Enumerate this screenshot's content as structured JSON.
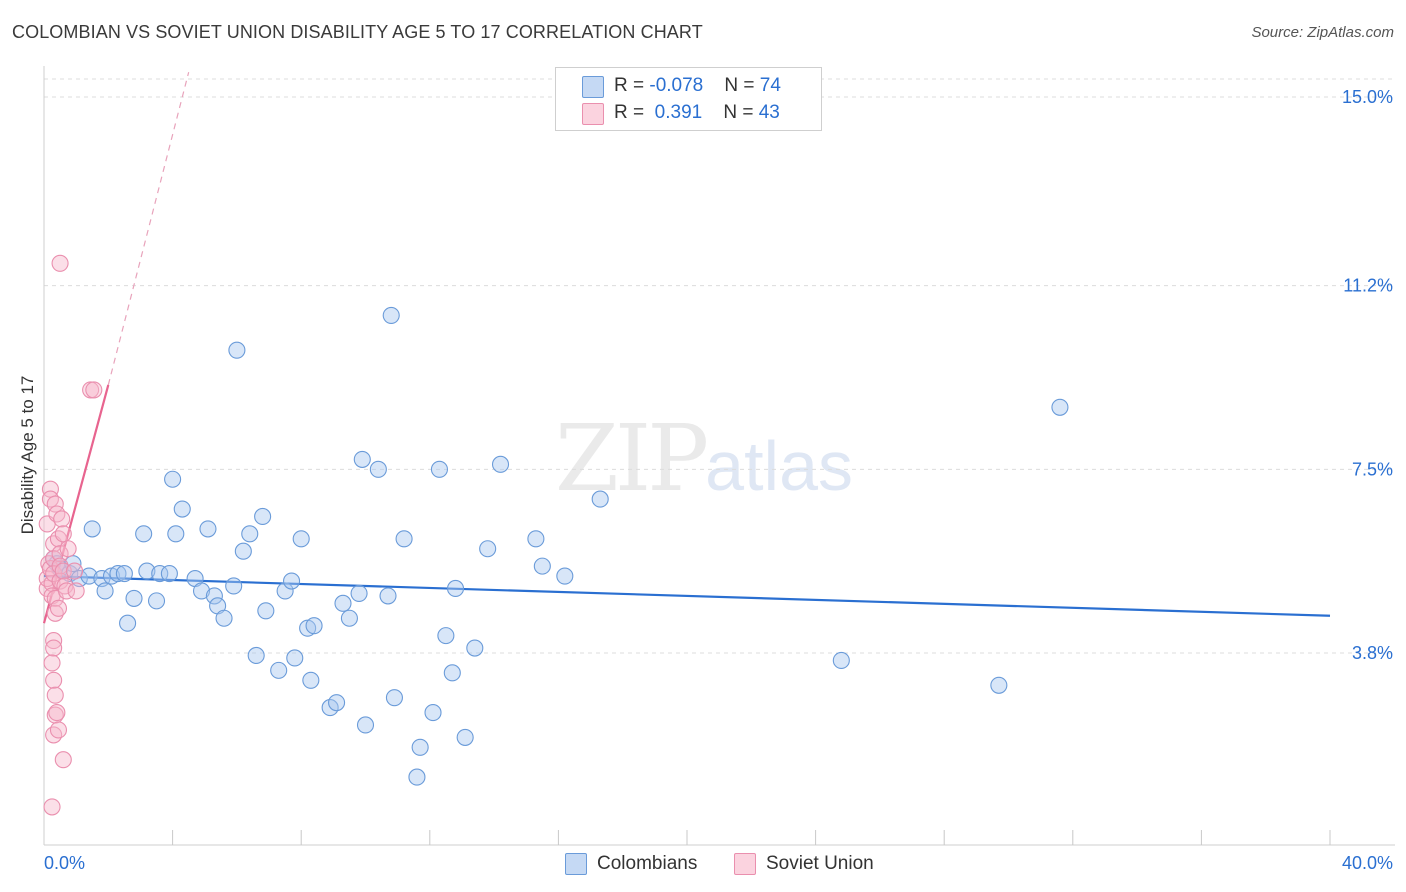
{
  "title": "COLOMBIAN VS SOVIET UNION DISABILITY AGE 5 TO 17 CORRELATION CHART",
  "source": "Source: ZipAtlas.com",
  "watermark": {
    "zip": "ZIP",
    "atlas": "atlas"
  },
  "legend": {
    "rows": [
      {
        "r_label": "R = ",
        "r_value": "-0.078",
        "n_label": "N = ",
        "n_value": "74",
        "color": "#a9c8f0"
      },
      {
        "r_label": "R = ",
        "r_value": " 0.391",
        "n_label": "N = ",
        "n_value": "43",
        "color": "#f6b8cb"
      }
    ]
  },
  "bottom_legend": {
    "colombians": "Colombians",
    "soviet": "Soviet Union"
  },
  "chart_data": {
    "type": "scatter",
    "title": "COLOMBIAN VS SOVIET UNION DISABILITY AGE 5 TO 17 CORRELATION CHART",
    "xlabel": "",
    "ylabel": "Disability Age 5 to 17",
    "xlim": [
      0,
      40
    ],
    "ylim": [
      0,
      15.5
    ],
    "x_tick_labels": [
      "0.0%",
      "40.0%"
    ],
    "y_ticks": [
      3.8,
      7.5,
      11.2,
      15.0
    ],
    "y_tick_labels": [
      "3.8%",
      "7.5%",
      "11.2%",
      "15.0%"
    ],
    "grid": true,
    "colors": {
      "colombians": "#a9c8f0",
      "colombians_edge": "#6a9bd9",
      "colombians_line": "#2a6fd1",
      "soviet": "#f6b8cb",
      "soviet_edge": "#ea8fae",
      "soviet_line": "#e8648f",
      "tick_label": "#2a6fd1"
    },
    "series": [
      {
        "name": "Colombians",
        "points": [
          [
            0.3,
            5.7
          ],
          [
            0.4,
            5.6
          ],
          [
            0.5,
            5.5
          ],
          [
            0.8,
            5.4
          ],
          [
            0.9,
            5.6
          ],
          [
            1.1,
            5.3
          ],
          [
            1.4,
            5.35
          ],
          [
            1.5,
            6.3
          ],
          [
            1.8,
            5.3
          ],
          [
            1.9,
            5.05
          ],
          [
            2.1,
            5.35
          ],
          [
            2.3,
            5.4
          ],
          [
            2.5,
            5.4
          ],
          [
            2.6,
            4.4
          ],
          [
            2.8,
            4.9
          ],
          [
            3.1,
            6.2
          ],
          [
            3.2,
            5.45
          ],
          [
            3.5,
            4.85
          ],
          [
            3.6,
            5.4
          ],
          [
            3.9,
            5.4
          ],
          [
            4.0,
            7.3
          ],
          [
            4.1,
            6.2
          ],
          [
            4.3,
            6.7
          ],
          [
            4.7,
            5.3
          ],
          [
            4.9,
            5.05
          ],
          [
            5.1,
            6.3
          ],
          [
            5.3,
            4.95
          ],
          [
            5.4,
            4.75
          ],
          [
            5.6,
            4.5
          ],
          [
            5.9,
            5.15
          ],
          [
            6.0,
            9.9
          ],
          [
            6.2,
            5.85
          ],
          [
            6.4,
            6.2
          ],
          [
            6.6,
            3.75
          ],
          [
            6.8,
            6.55
          ],
          [
            6.9,
            4.65
          ],
          [
            7.3,
            3.45
          ],
          [
            7.5,
            5.05
          ],
          [
            7.7,
            5.25
          ],
          [
            7.8,
            3.7
          ],
          [
            8.0,
            6.1
          ],
          [
            8.2,
            4.3
          ],
          [
            8.3,
            3.25
          ],
          [
            8.4,
            4.35
          ],
          [
            8.9,
            2.7
          ],
          [
            9.1,
            2.8
          ],
          [
            9.3,
            4.8
          ],
          [
            9.5,
            4.5
          ],
          [
            9.8,
            5.0
          ],
          [
            9.9,
            7.7
          ],
          [
            10.0,
            2.35
          ],
          [
            10.4,
            7.5
          ],
          [
            10.7,
            4.95
          ],
          [
            10.8,
            10.6
          ],
          [
            10.9,
            2.9
          ],
          [
            11.2,
            6.1
          ],
          [
            11.6,
            1.3
          ],
          [
            11.7,
            1.9
          ],
          [
            12.1,
            2.6
          ],
          [
            12.3,
            7.5
          ],
          [
            12.5,
            4.15
          ],
          [
            12.7,
            3.4
          ],
          [
            12.8,
            5.1
          ],
          [
            13.1,
            2.1
          ],
          [
            13.4,
            3.9
          ],
          [
            13.8,
            5.9
          ],
          [
            14.2,
            7.6
          ],
          [
            15.3,
            6.1
          ],
          [
            15.5,
            5.55
          ],
          [
            16.2,
            5.35
          ],
          [
            17.3,
            6.9
          ],
          [
            24.8,
            3.65
          ],
          [
            29.7,
            3.15
          ],
          [
            31.6,
            8.75
          ]
        ],
        "trend": [
          [
            0,
            5.35
          ],
          [
            40,
            4.55
          ]
        ]
      },
      {
        "name": "Soviet Union",
        "points": [
          [
            0.1,
            6.4
          ],
          [
            0.1,
            5.1
          ],
          [
            0.1,
            5.3
          ],
          [
            0.15,
            5.6
          ],
          [
            0.2,
            7.1
          ],
          [
            0.2,
            6.9
          ],
          [
            0.2,
            5.5
          ],
          [
            0.25,
            5.2
          ],
          [
            0.25,
            4.95
          ],
          [
            0.3,
            6.0
          ],
          [
            0.3,
            5.7
          ],
          [
            0.3,
            5.4
          ],
          [
            0.35,
            6.8
          ],
          [
            0.35,
            4.9
          ],
          [
            0.35,
            4.6
          ],
          [
            0.3,
            4.05
          ],
          [
            0.3,
            3.9
          ],
          [
            0.25,
            3.6
          ],
          [
            0.3,
            3.25
          ],
          [
            0.35,
            2.95
          ],
          [
            0.35,
            2.55
          ],
          [
            0.4,
            2.6
          ],
          [
            0.3,
            2.15
          ],
          [
            0.45,
            2.25
          ],
          [
            0.4,
            6.6
          ],
          [
            0.45,
            6.1
          ],
          [
            0.5,
            5.8
          ],
          [
            0.5,
            5.55
          ],
          [
            0.5,
            5.25
          ],
          [
            0.45,
            4.7
          ],
          [
            0.55,
            6.5
          ],
          [
            0.6,
            6.2
          ],
          [
            0.6,
            5.45
          ],
          [
            0.65,
            5.15
          ],
          [
            0.7,
            5.05
          ],
          [
            0.75,
            5.9
          ],
          [
            0.5,
            11.65
          ],
          [
            0.6,
            1.65
          ],
          [
            0.25,
            0.7
          ],
          [
            0.95,
            5.45
          ],
          [
            1.0,
            5.05
          ],
          [
            1.45,
            9.1
          ],
          [
            1.55,
            9.1
          ]
        ],
        "trend": [
          [
            0,
            4.4
          ],
          [
            2.0,
            9.2
          ]
        ],
        "trend_extension": [
          [
            2.0,
            9.2
          ],
          [
            4.5,
            15.5
          ]
        ]
      }
    ]
  }
}
